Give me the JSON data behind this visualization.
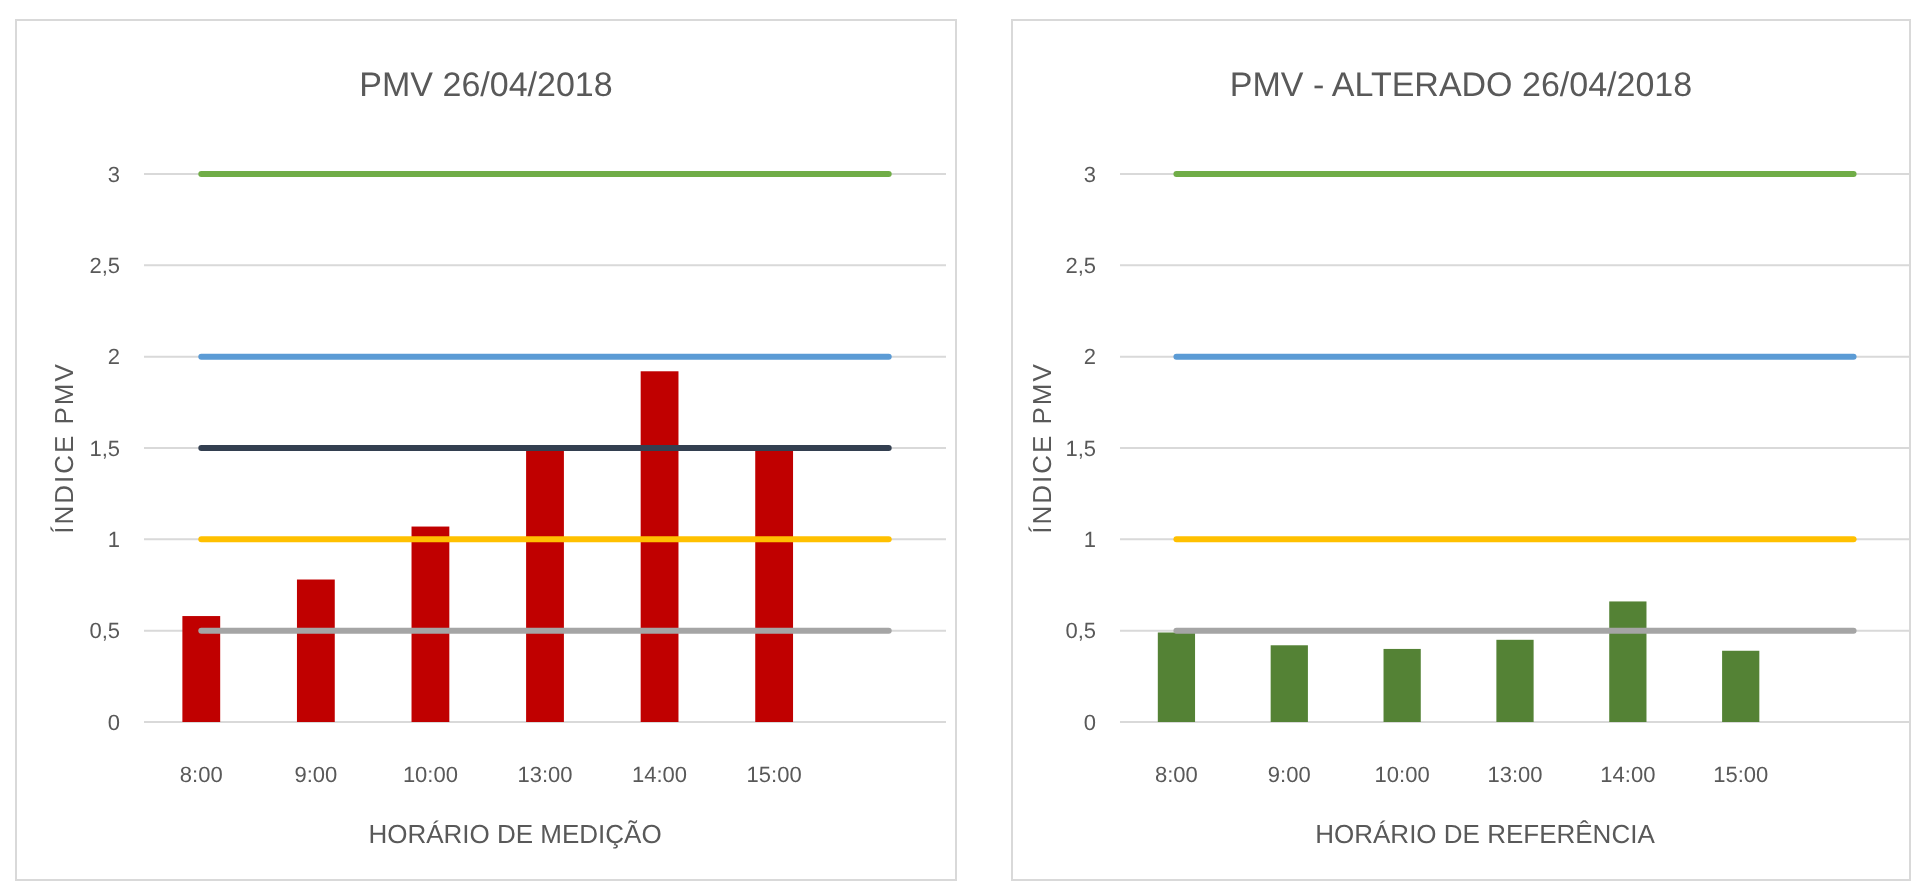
{
  "chart_data": [
    {
      "type": "bar",
      "title": "PMV 26/04/2018",
      "xlabel": "HORÁRIO DE MEDIÇÃO",
      "ylabel": "ÍNDICE PMV",
      "categories": [
        "8:00",
        "9:00",
        "10:00",
        "13:00",
        "14:00",
        "15:00",
        null
      ],
      "ylim": [
        0,
        3
      ],
      "yticks": [
        0,
        {
          "value": 0.5,
          "label": "0,5"
        },
        1,
        {
          "value": 1.5,
          "label": "1,5"
        },
        2,
        {
          "value": 2.5,
          "label": "2,5"
        },
        3
      ],
      "grid": "y",
      "series": [
        {
          "color": "#c00000",
          "values": [
            0.58,
            0.78,
            1.07,
            1.51,
            1.92,
            1.5,
            null
          ]
        },
        {
          "type": "line",
          "color": "#70ad47",
          "values": [
            3,
            3,
            3,
            3,
            3,
            3,
            3
          ]
        },
        {
          "type": "line",
          "color": "#5b9bd5",
          "values": [
            2,
            2,
            2,
            2,
            2,
            2,
            2
          ]
        },
        {
          "type": "line",
          "color": "#333f50",
          "values": [
            1.5,
            1.5,
            1.5,
            1.5,
            1.5,
            1.5,
            1.5
          ]
        },
        {
          "type": "line",
          "color": "#ffc000",
          "values": [
            1,
            1,
            1,
            1,
            1,
            1,
            1
          ]
        },
        {
          "type": "line",
          "color": "#a5a5a5",
          "values": [
            0.5,
            0.5,
            0.5,
            0.5,
            0.5,
            0.5,
            0.5
          ]
        }
      ]
    },
    {
      "type": "bar",
      "title": "PMV - ALTERADO 26/04/2018",
      "xlabel": "HORÁRIO DE REFERÊNCIA",
      "ylabel": "ÍNDICE PMV",
      "categories": [
        "8:00",
        "9:00",
        "10:00",
        "13:00",
        "14:00",
        "15:00",
        null
      ],
      "ylim": [
        0,
        3
      ],
      "yticks": [
        0,
        {
          "value": 0.5,
          "label": "0,5"
        },
        1,
        {
          "value": 1.5,
          "label": "1,5"
        },
        2,
        {
          "value": 2.5,
          "label": "2,5"
        },
        3
      ],
      "grid": "y",
      "series": [
        {
          "color": "#548235",
          "values": [
            0.49,
            0.42,
            0.4,
            0.45,
            0.66,
            0.39,
            null
          ]
        },
        {
          "type": "line",
          "color": "#70ad47",
          "values": [
            3,
            3,
            3,
            3,
            3,
            3,
            3
          ]
        },
        {
          "type": "line",
          "color": "#5b9bd5",
          "values": [
            2,
            2,
            2,
            2,
            2,
            2,
            2
          ]
        },
        {
          "type": "line",
          "color": "#ffc000",
          "values": [
            1,
            1,
            1,
            1,
            1,
            1,
            1
          ]
        },
        {
          "type": "line",
          "color": "#a5a5a5",
          "values": [
            0.5,
            0.5,
            0.5,
            0.5,
            0.5,
            0.5,
            0.5
          ]
        }
      ]
    }
  ]
}
